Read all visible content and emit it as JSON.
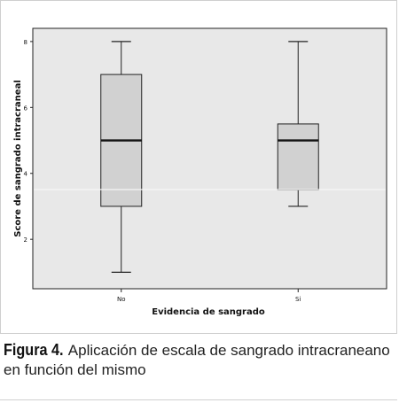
{
  "chart_data": {
    "type": "boxplot",
    "xlabel": "Evidencia de sangrado",
    "ylabel": "Score de sangrado intracraneal",
    "categories": [
      "No",
      "Si"
    ],
    "ylim": [
      0.5,
      8.4
    ],
    "yticks": [
      2,
      4,
      6,
      8
    ],
    "boxes": [
      {
        "category": "No",
        "min": 1,
        "q1": 3,
        "median": 5,
        "q3": 7,
        "max": 8
      },
      {
        "category": "Si",
        "min": 3,
        "q1": 3.5,
        "median": 5,
        "q3": 5.5,
        "max": 8
      }
    ],
    "colors": {
      "plot_background": "#e8e8e8",
      "box_fill": "#d1d1d1",
      "stroke": "#222222"
    },
    "grid": false
  },
  "caption": {
    "label": "Figura 4.",
    "text": " Aplicación de escala de sangrado intracraneano en función del mismo"
  }
}
